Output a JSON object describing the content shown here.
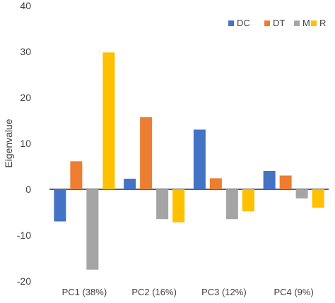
{
  "chart_data": {
    "type": "bar",
    "title": "",
    "xlabel": "",
    "ylabel": "Eigenvalue",
    "ylim": [
      -20,
      40
    ],
    "yticks": [
      -20,
      -10,
      0,
      10,
      20,
      30,
      40
    ],
    "grid": false,
    "legend_position": "top-right",
    "categories": [
      "PC1 (38%)",
      "PC2 (16%)",
      "PC3 (12%)",
      "PC4 (9%)"
    ],
    "series": [
      {
        "name": "DC",
        "color": "#4472C4",
        "values": [
          -7.0,
          2.3,
          13.0,
          4.0
        ]
      },
      {
        "name": "DT",
        "color": "#ED7D31",
        "values": [
          6.1,
          15.7,
          2.4,
          3.0
        ]
      },
      {
        "name": "M",
        "color": "#A5A5A5",
        "values": [
          -17.5,
          -6.5,
          -6.5,
          -2.0
        ]
      },
      {
        "name": "R",
        "color": "#FFC000",
        "values": [
          29.8,
          -7.2,
          -4.8,
          -4.0
        ]
      }
    ]
  }
}
